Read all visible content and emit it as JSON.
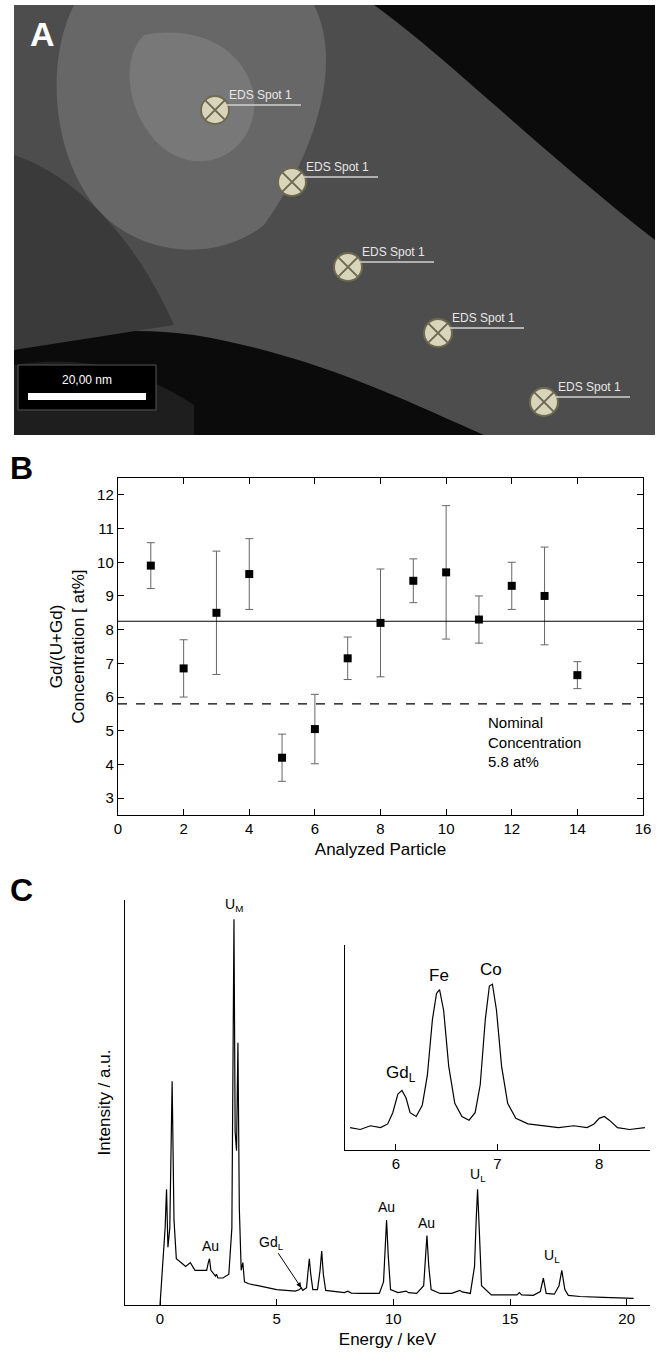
{
  "chart_data": [
    {
      "label": "A",
      "type": "image",
      "spots": [
        "EDS Spot 1",
        "EDS Spot 1",
        "EDS Spot 1",
        "EDS Spot 1",
        "EDS Spot 1"
      ],
      "scale_bar": "20,00 nm"
    },
    {
      "label": "B",
      "type": "scatter",
      "x": [
        1,
        2,
        3,
        4,
        5,
        6,
        7,
        8,
        9,
        10,
        11,
        12,
        13,
        14
      ],
      "values": [
        9.9,
        6.85,
        8.5,
        9.65,
        4.2,
        5.05,
        7.15,
        8.2,
        9.45,
        9.7,
        8.3,
        9.3,
        9.0,
        6.65
      ],
      "errors": [
        0.68,
        0.85,
        1.83,
        1.05,
        0.7,
        1.03,
        0.63,
        1.6,
        0.65,
        1.98,
        0.7,
        0.7,
        1.45,
        0.4
      ],
      "marker": "square",
      "color": "#000000",
      "grid": false,
      "xlim": [
        0,
        16
      ],
      "xticks": [
        0,
        2,
        4,
        6,
        8,
        10,
        12,
        14,
        16
      ],
      "ylim": [
        2.5,
        12.5
      ],
      "yticks": [
        3,
        4,
        5,
        6,
        7,
        8,
        9,
        10,
        11,
        12
      ],
      "x_label": "Analyzed Particle",
      "y_label": [
        "Gd/(U+Gd)",
        "Concentration [ at%]"
      ],
      "reference_lines": [
        {
          "value": 8.25,
          "line_style": "solid"
        },
        {
          "value": 5.8,
          "line_style": "dashed",
          "label": [
            "Nominal",
            "Concentration",
            "5.8 at%"
          ]
        }
      ]
    },
    {
      "label": "C",
      "type": "line",
      "color": "#000000",
      "grid": false,
      "tick_labels": "x",
      "x_label": "Energy / keV",
      "y_label": "Intensity / a.u.",
      "xlim": [
        -1.5,
        21
      ],
      "xticks": [
        0,
        5,
        10,
        15,
        20
      ],
      "ylim": [
        0,
        105
      ],
      "x": [
        0.0,
        0.15,
        0.22,
        0.28,
        0.34,
        0.42,
        0.52,
        0.6,
        0.7,
        0.9,
        1.1,
        1.3,
        1.5,
        1.8,
        2.0,
        2.07,
        2.12,
        2.18,
        2.3,
        2.38,
        2.42,
        2.48,
        2.7,
        2.95,
        3.08,
        3.13,
        3.17,
        3.22,
        3.28,
        3.34,
        3.4,
        3.48,
        3.55,
        3.62,
        3.8,
        4.2,
        4.6,
        5.0,
        5.4,
        5.8,
        5.98,
        6.05,
        6.12,
        6.28,
        6.35,
        6.4,
        6.46,
        6.55,
        6.75,
        6.86,
        6.93,
        7.0,
        7.1,
        7.5,
        7.9,
        8.05,
        8.2,
        8.6,
        9.0,
        9.4,
        9.58,
        9.65,
        9.71,
        9.78,
        9.88,
        10.2,
        10.55,
        10.65,
        11.0,
        11.3,
        11.38,
        11.44,
        11.52,
        11.62,
        12.0,
        12.5,
        12.85,
        12.95,
        13.3,
        13.48,
        13.55,
        13.61,
        13.68,
        13.78,
        14.2,
        14.8,
        15.3,
        15.4,
        15.5,
        16.0,
        16.3,
        16.43,
        16.55,
        16.9,
        17.1,
        17.22,
        17.35,
        17.5,
        18.0,
        19.0,
        20.0,
        20.3
      ],
      "values": [
        0,
        12,
        20,
        30,
        15,
        20,
        58,
        22,
        12,
        11,
        10,
        11,
        9,
        9,
        9,
        11,
        12,
        9,
        8,
        7.5,
        8,
        7,
        7,
        8,
        20,
        60,
        100,
        45,
        40,
        68,
        25,
        9,
        11,
        6,
        5.5,
        5,
        4.5,
        4,
        3.8,
        3.6,
        4,
        4.5,
        3.8,
        4.5,
        9,
        12,
        8,
        4,
        4,
        9,
        14,
        8,
        3.8,
        3.5,
        3.2,
        3.6,
        3.1,
        3.0,
        3.0,
        3.0,
        6,
        15,
        22,
        13,
        4,
        3.2,
        3.6,
        3.2,
        3.0,
        5,
        12,
        18,
        10,
        4,
        3,
        3,
        3.8,
        3.4,
        3,
        10,
        22,
        30,
        20,
        5,
        2.6,
        2.5,
        2.6,
        3.2,
        2.6,
        2.5,
        3.5,
        7,
        3,
        2.8,
        5,
        9,
        4,
        2.5,
        2.2,
        2.0,
        1.8,
        1.7
      ],
      "annotations": [
        {
          "text": "Au",
          "x": 2.15,
          "y": 12
        },
        {
          "text": "U",
          "sub": "M",
          "x": 3.17,
          "y": 100
        },
        {
          "text": "Gd",
          "sub": "L",
          "x": 6.05,
          "y": 4.5,
          "arrow": true
        },
        {
          "text": "Au",
          "x": 9.71,
          "y": 22
        },
        {
          "text": "Au",
          "x": 11.44,
          "y": 18
        },
        {
          "text": "U",
          "sub": "L",
          "x": 13.61,
          "y": 30
        },
        {
          "text": "U",
          "sub": "L",
          "x": 16.8,
          "y": 9
        }
      ],
      "inset": {
        "type": "line",
        "color": "#000000",
        "tick_labels": "x",
        "xlim": [
          5.5,
          8.5
        ],
        "xticks": [
          6,
          7,
          8
        ],
        "ylim": [
          0,
          110
        ],
        "x": [
          5.55,
          5.65,
          5.75,
          5.85,
          5.92,
          5.97,
          6.02,
          6.06,
          6.1,
          6.14,
          6.2,
          6.26,
          6.31,
          6.36,
          6.4,
          6.43,
          6.47,
          6.52,
          6.58,
          6.65,
          6.72,
          6.78,
          6.83,
          6.88,
          6.92,
          6.95,
          6.99,
          7.04,
          7.1,
          7.18,
          7.3,
          7.45,
          7.6,
          7.75,
          7.88,
          7.95,
          8.0,
          8.05,
          8.1,
          8.18,
          8.3,
          8.45
        ],
        "values": [
          12,
          11,
          13,
          12,
          14,
          20,
          30,
          32,
          28,
          20,
          18,
          24,
          40,
          70,
          84,
          86,
          75,
          45,
          25,
          18,
          16,
          20,
          35,
          70,
          88,
          89,
          75,
          45,
          25,
          17,
          14,
          13,
          12,
          13,
          12,
          14,
          17,
          18,
          16,
          12,
          11,
          12
        ],
        "annotations": [
          {
            "text": "Gd",
            "sub": "L",
            "x": 6.05,
            "y": 32
          },
          {
            "text": "Fe",
            "x": 6.42,
            "y": 86
          },
          {
            "text": "Co",
            "x": 6.94,
            "y": 89
          }
        ]
      }
    }
  ]
}
